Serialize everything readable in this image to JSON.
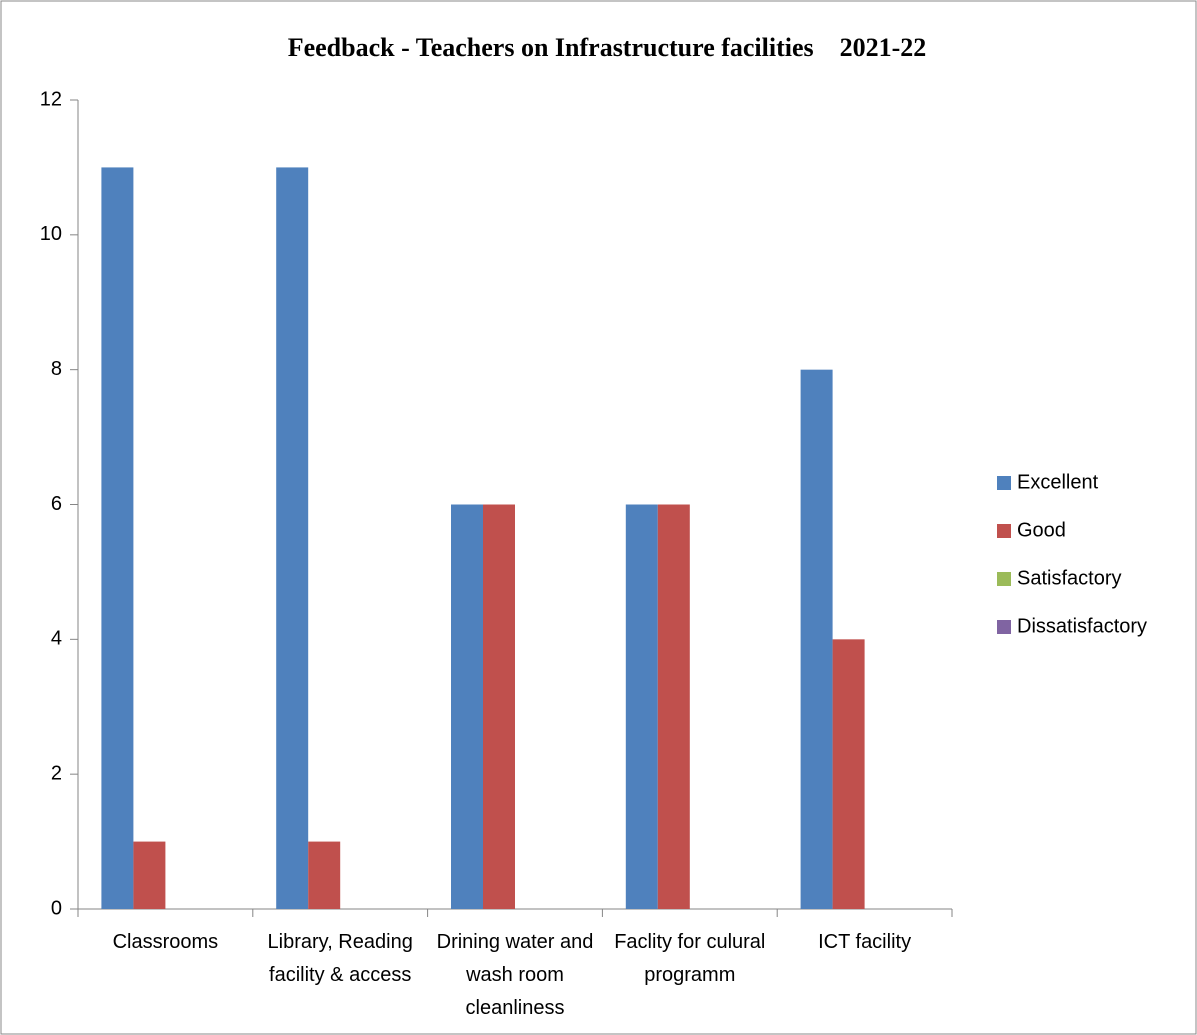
{
  "chart_data": {
    "type": "bar",
    "title": "Feedback - Teachers on Infrastructure facilities    2021-22",
    "categories": [
      "Classrooms",
      "Library, Reading facility & access",
      "Drining water and wash room cleanliness",
      "Faclity for culural programm",
      "ICT facility"
    ],
    "series": [
      {
        "name": "Excellent",
        "color": "#4f81bd",
        "values": [
          11,
          11,
          6,
          6,
          8
        ]
      },
      {
        "name": "Good",
        "color": "#c0504d",
        "values": [
          1,
          1,
          6,
          6,
          4
        ]
      },
      {
        "name": "Satisfactory",
        "color": "#9bbb59",
        "values": [
          0,
          0,
          0,
          0,
          0
        ]
      },
      {
        "name": "Dissatisfactory",
        "color": "#8064a2",
        "values": [
          0,
          0,
          0,
          0,
          0
        ]
      }
    ],
    "ylim": [
      0,
      12
    ],
    "yticks": [
      0,
      2,
      4,
      6,
      8,
      10,
      12
    ],
    "grid": false,
    "legend": "right"
  }
}
